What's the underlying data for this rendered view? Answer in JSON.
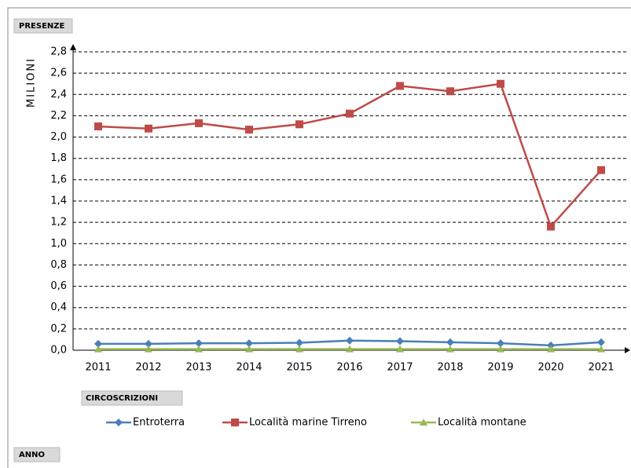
{
  "chart_data": {
    "type": "line",
    "y_label": "MILIONI",
    "pivot_fields": {
      "values": "PRESENZE",
      "legend": "CIRCOSCRIZIONI",
      "axis": "ANNO"
    },
    "categories": [
      "2011",
      "2012",
      "2013",
      "2014",
      "2015",
      "2016",
      "2017",
      "2018",
      "2019",
      "2020",
      "2021"
    ],
    "series": [
      {
        "name": "Entroterra",
        "color": "#4a7ebb",
        "marker": "diamond",
        "values": [
          0.06,
          0.06,
          0.065,
          0.065,
          0.07,
          0.09,
          0.085,
          0.075,
          0.065,
          0.045,
          0.075
        ]
      },
      {
        "name": "Località marine Tirreno",
        "color": "#be4b48",
        "marker": "square",
        "values": [
          2.1,
          2.08,
          2.13,
          2.07,
          2.12,
          2.22,
          2.48,
          2.43,
          2.5,
          1.16,
          1.69
        ]
      },
      {
        "name": "Località montane",
        "color": "#98b954",
        "marker": "triangle",
        "values": [
          0.01,
          0.01,
          0.01,
          0.01,
          0.01,
          0.01,
          0.01,
          0.01,
          0.01,
          0.01,
          0.01
        ]
      }
    ],
    "ylim": [
      0,
      2.8
    ],
    "yticks": [
      {
        "value": 0,
        "label": "0,0"
      },
      {
        "value": 0.2,
        "label": "0,2"
      },
      {
        "value": 0.4,
        "label": "0,4"
      },
      {
        "value": 0.6,
        "label": "0,6"
      },
      {
        "value": 0.8,
        "label": "0,8"
      },
      {
        "value": 1,
        "label": "1,0"
      },
      {
        "value": 1.2,
        "label": "1,2"
      },
      {
        "value": 1.4,
        "label": "1,4"
      },
      {
        "value": 1.6,
        "label": "1,6"
      },
      {
        "value": 1.8,
        "label": "1,8"
      },
      {
        "value": 2,
        "label": "2,0"
      },
      {
        "value": 2.2,
        "label": "2,2"
      },
      {
        "value": 2.4,
        "label": "2,4"
      },
      {
        "value": 2.6,
        "label": "2,6"
      },
      {
        "value": 2.8,
        "label": "2,8"
      }
    ],
    "grid": true,
    "legend": "bottom"
  }
}
